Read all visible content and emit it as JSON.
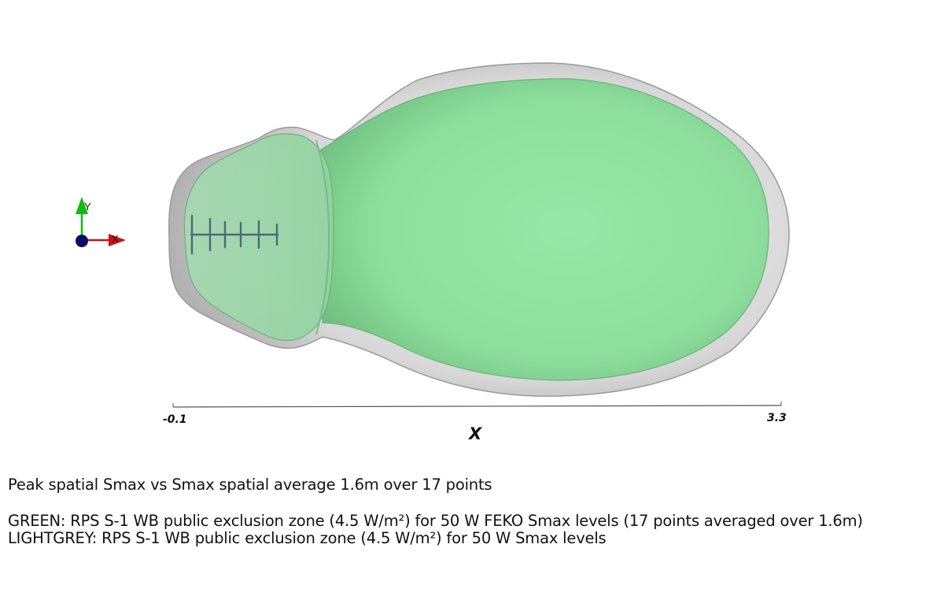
{
  "scene": {
    "axis": {
      "title": "X",
      "tick_min_label": "-0.1",
      "tick_max_label": "3.3",
      "range": [
        -0.1,
        3.3
      ]
    },
    "orientation_triad": {
      "x_label": "X",
      "y_label": "Y"
    },
    "surfaces": [
      {
        "name": "LIGHTGREY",
        "color": "#c8c8c8",
        "opacity": 0.75
      },
      {
        "name": "GREEN",
        "color": "#8fe3a2",
        "opacity": 0.9
      }
    ],
    "antenna_color": "#4a6a7a",
    "triad_colors": {
      "x": "#cc1111",
      "y": "#11bb11",
      "z": "#0a0a60"
    }
  },
  "captions": {
    "title": "Peak spatial Smax vs Smax spatial average 1.6m over 17 points",
    "green": "GREEN: RPS S-1 WB public exclusion zone (4.5 W/m²) for 50 W FEKO Smax levels (17 points averaged over 1.6m)",
    "lightgrey": "LIGHTGREY: RPS S-1 WB public exclusion zone (4.5 W/m²) for 50 W Smax levels"
  }
}
